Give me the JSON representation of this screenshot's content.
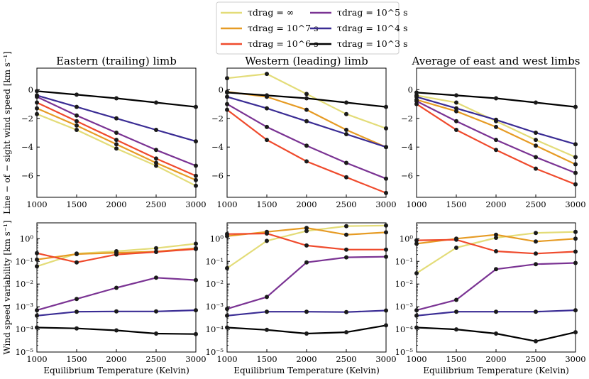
{
  "legend": {
    "entries": [
      {
        "label": "τdrag = ∞",
        "color": "#e3dc78"
      },
      {
        "label": "τdrag = 10^7 s",
        "color": "#e69b24"
      },
      {
        "label": "τdrag = 10^6 s",
        "color": "#ef4a2c"
      },
      {
        "label": "τdrag = 10^5 s",
        "color": "#7a3393"
      },
      {
        "label": "τdrag = 10^4 s",
        "color": "#3a2c94"
      },
      {
        "label": "τdrag = 10^3 s",
        "color": "#000000"
      }
    ]
  },
  "chart_data": [
    {
      "type": "line",
      "row": 0,
      "col": 0,
      "title": "Eastern (trailing) limb",
      "xlabel": "",
      "ylabel": "Line − of − sight wind speed [km s⁻¹]",
      "x": [
        1000,
        1500,
        2000,
        2500,
        3000
      ],
      "xlim": [
        1000,
        3000
      ],
      "ylim": [
        -7.5,
        1.5
      ],
      "yscale": "linear",
      "xticks": [
        "1000",
        "1500",
        "2000",
        "2500",
        "3000"
      ],
      "yticks": [
        {
          "v": 0,
          "label": "0"
        },
        {
          "v": -2,
          "label": "−2"
        },
        {
          "v": -4,
          "label": "−4"
        },
        {
          "v": -6,
          "label": "−6"
        }
      ],
      "series": [
        {
          "name": "τdrag = ∞",
          "values": [
            -1.7,
            -2.8,
            -4.1,
            -5.3,
            -6.7
          ]
        },
        {
          "name": "τdrag = 10^7 s",
          "values": [
            -1.3,
            -2.5,
            -3.8,
            -5.1,
            -6.3
          ]
        },
        {
          "name": "τdrag = 10^6 s",
          "values": [
            -0.9,
            -2.2,
            -3.5,
            -4.8,
            -6.0
          ]
        },
        {
          "name": "τdrag = 10^5 s",
          "values": [
            -0.5,
            -1.8,
            -3.0,
            -4.2,
            -5.3
          ]
        },
        {
          "name": "τdrag = 10^4 s",
          "values": [
            -0.4,
            -1.2,
            -2.0,
            -2.8,
            -3.6
          ]
        },
        {
          "name": "τdrag = 10^3 s",
          "values": [
            -0.1,
            -0.35,
            -0.6,
            -0.9,
            -1.2
          ]
        }
      ]
    },
    {
      "type": "line",
      "row": 0,
      "col": 1,
      "title": "Western (leading) limb",
      "xlabel": "",
      "ylabel": "",
      "x": [
        1000,
        1500,
        2000,
        2500,
        3000
      ],
      "xlim": [
        1000,
        3000
      ],
      "ylim": [
        -7.5,
        1.5
      ],
      "yscale": "linear",
      "xticks": [
        "1000",
        "1500",
        "2000",
        "2500",
        "3000"
      ],
      "yticks": [
        {
          "v": 0,
          "label": "0"
        },
        {
          "v": -2,
          "label": "−2"
        },
        {
          "v": -4,
          "label": "−4"
        },
        {
          "v": -6,
          "label": "−6"
        }
      ],
      "series": [
        {
          "name": "τdrag = ∞",
          "values": [
            0.8,
            1.1,
            -0.3,
            -1.7,
            -2.7
          ]
        },
        {
          "name": "τdrag = 10^7 s",
          "values": [
            -0.15,
            -0.5,
            -1.4,
            -2.8,
            -4.0
          ]
        },
        {
          "name": "τdrag = 10^6 s",
          "values": [
            -1.4,
            -3.5,
            -5.0,
            -6.1,
            -7.2
          ]
        },
        {
          "name": "τdrag = 10^5 s",
          "values": [
            -1.0,
            -2.6,
            -3.9,
            -5.1,
            -6.2
          ]
        },
        {
          "name": "τdrag = 10^4 s",
          "values": [
            -0.5,
            -1.3,
            -2.2,
            -3.1,
            -4.0
          ]
        },
        {
          "name": "τdrag = 10^3 s",
          "values": [
            -0.2,
            -0.4,
            -0.6,
            -0.9,
            -1.2
          ]
        }
      ]
    },
    {
      "type": "line",
      "row": 0,
      "col": 2,
      "title": "Average of east and west limbs",
      "xlabel": "",
      "ylabel": "",
      "x": [
        1000,
        1500,
        2000,
        2500,
        3000
      ],
      "xlim": [
        1000,
        3000
      ],
      "ylim": [
        -7.5,
        1.5
      ],
      "yscale": "linear",
      "xticks": [
        "1000",
        "1500",
        "2000",
        "2500",
        "3000"
      ],
      "yticks": [
        {
          "v": 0,
          "label": "0"
        },
        {
          "v": -2,
          "label": "−2"
        },
        {
          "v": -4,
          "label": "−4"
        },
        {
          "v": -6,
          "label": "−6"
        }
      ],
      "series": [
        {
          "name": "τdrag = ∞",
          "values": [
            -0.4,
            -0.9,
            -2.2,
            -3.5,
            -4.7
          ]
        },
        {
          "name": "τdrag = 10^7 s",
          "values": [
            -0.7,
            -1.5,
            -2.6,
            -3.9,
            -5.2
          ]
        },
        {
          "name": "τdrag = 10^6 s",
          "values": [
            -1.0,
            -2.8,
            -4.2,
            -5.5,
            -6.6
          ]
        },
        {
          "name": "τdrag = 10^5 s",
          "values": [
            -0.8,
            -2.2,
            -3.5,
            -4.7,
            -5.8
          ]
        },
        {
          "name": "τdrag = 10^4 s",
          "values": [
            -0.5,
            -1.3,
            -2.1,
            -3.0,
            -3.8
          ]
        },
        {
          "name": "τdrag = 10^3 s",
          "values": [
            -0.2,
            -0.4,
            -0.6,
            -0.9,
            -1.2
          ]
        }
      ]
    },
    {
      "type": "line",
      "row": 1,
      "col": 0,
      "title": "",
      "xlabel": "Equilibrium Temperature (Kelvin)",
      "ylabel": "Wind speed variability [km s⁻¹]",
      "x": [
        1000,
        1500,
        2000,
        2500,
        3000
      ],
      "xlim": [
        1000,
        3000
      ],
      "ylim": [
        1e-05,
        5
      ],
      "yscale": "log",
      "xticks": [
        "1000",
        "1500",
        "2000",
        "2500",
        "3000"
      ],
      "yticks": [
        {
          "v": 1e-05,
          "label": "10⁻⁵"
        },
        {
          "v": 0.0001,
          "label": "10⁻⁴"
        },
        {
          "v": 0.001,
          "label": "10⁻³"
        },
        {
          "v": 0.01,
          "label": "10⁻²"
        },
        {
          "v": 0.1,
          "label": "10⁻¹"
        },
        {
          "v": 1,
          "label": "10⁰"
        }
      ],
      "series": [
        {
          "name": "τdrag = ∞",
          "values": [
            0.06,
            0.22,
            0.28,
            0.38,
            0.6
          ]
        },
        {
          "name": "τdrag = 10^7 s",
          "values": [
            0.12,
            0.21,
            0.24,
            0.27,
            0.38
          ]
        },
        {
          "name": "τdrag = 10^6 s",
          "values": [
            0.23,
            0.09,
            0.2,
            0.26,
            0.35
          ]
        },
        {
          "name": "τdrag = 10^5 s",
          "values": [
            0.0007,
            0.0022,
            0.0068,
            0.019,
            0.015
          ]
        },
        {
          "name": "τdrag = 10^4 s",
          "values": [
            0.0004,
            0.0006,
            0.00062,
            0.00062,
            0.0007
          ]
        },
        {
          "name": "τdrag = 10^3 s",
          "values": [
            0.00012,
            0.00011,
            9e-05,
            6.5e-05,
            6.2e-05
          ]
        }
      ]
    },
    {
      "type": "line",
      "row": 1,
      "col": 1,
      "title": "",
      "xlabel": "Equilibrium Temperature (Kelvin)",
      "ylabel": "",
      "x": [
        1000,
        1500,
        2000,
        2500,
        3000
      ],
      "xlim": [
        1000,
        3000
      ],
      "ylim": [
        1e-05,
        5
      ],
      "yscale": "log",
      "xticks": [
        "1000",
        "1500",
        "2000",
        "2500",
        "3000"
      ],
      "yticks": [
        {
          "v": 1e-05,
          "label": "10⁻⁵"
        },
        {
          "v": 0.0001,
          "label": "10⁻⁴"
        },
        {
          "v": 0.001,
          "label": "10⁻³"
        },
        {
          "v": 0.01,
          "label": "10⁻²"
        },
        {
          "v": 0.1,
          "label": "10⁻¹"
        },
        {
          "v": 1,
          "label": "10⁰"
        }
      ],
      "series": [
        {
          "name": "τdrag = ∞",
          "values": [
            0.05,
            0.8,
            2.2,
            3.6,
            3.8
          ]
        },
        {
          "name": "τdrag = 10^7 s",
          "values": [
            1.3,
            2.0,
            3.0,
            1.5,
            1.9
          ]
        },
        {
          "name": "τdrag = 10^6 s",
          "values": [
            1.6,
            1.7,
            0.5,
            0.33,
            0.33
          ]
        },
        {
          "name": "τdrag = 10^5 s",
          "values": [
            0.0008,
            0.0027,
            0.09,
            0.15,
            0.16
          ]
        },
        {
          "name": "τdrag = 10^4 s",
          "values": [
            0.0004,
            0.0006,
            0.0006,
            0.00058,
            0.00068
          ]
        },
        {
          "name": "τdrag = 10^3 s",
          "values": [
            0.00012,
            9.5e-05,
            6.5e-05,
            7.5e-05,
            0.00015
          ]
        }
      ]
    },
    {
      "type": "line",
      "row": 1,
      "col": 2,
      "title": "",
      "xlabel": "Equilibrium Temperature (Kelvin)",
      "ylabel": "",
      "x": [
        1000,
        1500,
        2000,
        2500,
        3000
      ],
      "xlim": [
        1000,
        3000
      ],
      "ylim": [
        1e-05,
        5
      ],
      "yscale": "log",
      "xticks": [
        "1000",
        "1500",
        "2000",
        "2500",
        "3000"
      ],
      "yticks": [
        {
          "v": 1e-05,
          "label": "10⁻⁵"
        },
        {
          "v": 0.0001,
          "label": "10⁻⁴"
        },
        {
          "v": 0.001,
          "label": "10⁻³"
        },
        {
          "v": 0.01,
          "label": "10⁻²"
        },
        {
          "v": 0.1,
          "label": "10⁻¹"
        },
        {
          "v": 1,
          "label": "10⁰"
        }
      ],
      "series": [
        {
          "name": "τdrag = ∞",
          "values": [
            0.03,
            0.4,
            1.1,
            1.8,
            2.0
          ]
        },
        {
          "name": "τdrag = 10^7 s",
          "values": [
            0.6,
            1.0,
            1.5,
            0.75,
            1.0
          ]
        },
        {
          "name": "τdrag = 10^6 s",
          "values": [
            0.85,
            0.9,
            0.28,
            0.22,
            0.27
          ]
        },
        {
          "name": "τdrag = 10^5 s",
          "values": [
            0.0007,
            0.002,
            0.045,
            0.075,
            0.085
          ]
        },
        {
          "name": "τdrag = 10^4 s",
          "values": [
            0.0004,
            0.0006,
            0.0006,
            0.0006,
            0.0007
          ]
        },
        {
          "name": "τdrag = 10^3 s",
          "values": [
            0.00012,
            0.0001,
            6.5e-05,
            3e-05,
            7.5e-05
          ]
        }
      ]
    }
  ]
}
